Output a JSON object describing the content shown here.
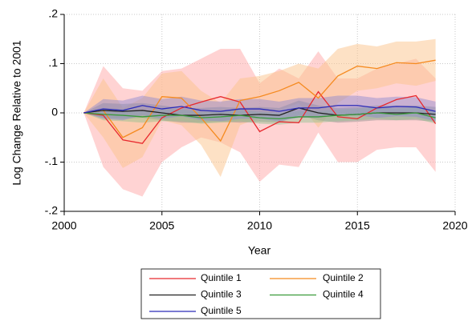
{
  "chart_data": {
    "type": "line",
    "x_label": "Year",
    "y_label": "Log  Change Relative to 2001",
    "x": [
      2001,
      2002,
      2003,
      2004,
      2005,
      2006,
      2007,
      2008,
      2009,
      2010,
      2011,
      2012,
      2013,
      2014,
      2015,
      2016,
      2017,
      2018,
      2019
    ],
    "xlim": [
      2000,
      2020
    ],
    "xticks": [
      2000,
      2005,
      2010,
      2015,
      2020
    ],
    "ylim": [
      -0.2,
      0.2
    ],
    "yticks": [
      {
        "value": -0.2,
        "label": "-.2"
      },
      {
        "value": -0.1,
        "label": "-.1"
      },
      0,
      {
        "value": 0.1,
        "label": ".1"
      },
      {
        "value": 0.2,
        "label": ".2"
      }
    ],
    "grid": true,
    "series": [
      {
        "name": "Quintile 1",
        "color": "#e8292e",
        "band_color": "#ffa8a8",
        "values": [
          0,
          -0.005,
          -0.055,
          -0.062,
          -0.01,
          0.01,
          0.022,
          0.033,
          0.022,
          -0.038,
          -0.018,
          -0.02,
          0.043,
          -0.008,
          -0.012,
          0.01,
          0.027,
          0.035,
          -0.022
        ],
        "upper": [
          0,
          0.095,
          0.05,
          0.045,
          0.085,
          0.09,
          0.11,
          0.13,
          0.13,
          0.06,
          0.09,
          0.07,
          0.125,
          0.07,
          0.07,
          0.09,
          0.1,
          0.11,
          0.07
        ],
        "lower": [
          0,
          -0.11,
          -0.155,
          -0.17,
          -0.1,
          -0.07,
          -0.05,
          -0.06,
          -0.08,
          -0.14,
          -0.105,
          -0.11,
          -0.04,
          -0.1,
          -0.1,
          -0.075,
          -0.07,
          -0.07,
          -0.12
        ]
      },
      {
        "name": "Quintile 2",
        "color": "#f58a1f",
        "band_color": "#fcc48c",
        "values": [
          0,
          0.005,
          -0.05,
          -0.03,
          0.033,
          0.03,
          -0.01,
          -0.057,
          0.025,
          0.033,
          0.045,
          0.062,
          0.03,
          0.075,
          0.095,
          0.09,
          0.102,
          0.1,
          0.107
        ],
        "upper": [
          0,
          0.07,
          0.01,
          0.03,
          0.08,
          0.085,
          0.045,
          0.02,
          0.07,
          0.075,
          0.085,
          0.1,
          0.09,
          0.13,
          0.14,
          0.135,
          0.145,
          0.145,
          0.15
        ],
        "lower": [
          0,
          -0.05,
          -0.112,
          -0.09,
          -0.015,
          -0.025,
          -0.065,
          -0.13,
          -0.025,
          -0.01,
          0.005,
          0.02,
          -0.03,
          0.02,
          0.045,
          0.05,
          0.06,
          0.055,
          0.065
        ]
      },
      {
        "name": "Quintile 3",
        "color": "#222222",
        "band_color": "#8c8c8c",
        "values": [
          0,
          0.005,
          0.003,
          0.005,
          0,
          -0.005,
          -0.005,
          -0.003,
          -0.005,
          -0.003,
          -0.005,
          0.01,
          0,
          -0.005,
          -0.003,
          0,
          0,
          0,
          -0.003
        ],
        "upper": [
          0,
          0.02,
          0.018,
          0.02,
          0.015,
          0.01,
          0.01,
          0.012,
          0.01,
          0.012,
          0.01,
          0.025,
          0.015,
          0.01,
          0.012,
          0.015,
          0.015,
          0.015,
          0.012
        ],
        "lower": [
          0,
          -0.01,
          -0.012,
          -0.01,
          -0.015,
          -0.02,
          -0.02,
          -0.018,
          -0.02,
          -0.018,
          -0.02,
          -0.005,
          -0.015,
          -0.02,
          -0.018,
          -0.015,
          -0.015,
          -0.015,
          -0.018
        ]
      },
      {
        "name": "Quintile 4",
        "color": "#3a9a3a",
        "band_color": "#8fc08f",
        "values": [
          0,
          -0.003,
          -0.005,
          -0.008,
          -0.005,
          -0.005,
          -0.01,
          -0.008,
          -0.005,
          -0.01,
          -0.012,
          -0.008,
          -0.008,
          -0.005,
          -0.003,
          0,
          -0.003,
          0,
          -0.01
        ],
        "upper": [
          0,
          0.009,
          0.007,
          0.004,
          0.007,
          0.007,
          0.002,
          0.004,
          0.007,
          0.002,
          0,
          0.004,
          0.004,
          0.007,
          0.009,
          0.012,
          0.009,
          0.012,
          0.002
        ],
        "lower": [
          0,
          -0.015,
          -0.017,
          -0.02,
          -0.017,
          -0.017,
          -0.022,
          -0.02,
          -0.017,
          -0.022,
          -0.024,
          -0.02,
          -0.02,
          -0.017,
          -0.015,
          -0.012,
          -0.015,
          -0.012,
          -0.022
        ]
      },
      {
        "name": "Quintile 5",
        "color": "#2b2bb8",
        "band_color": "#8884d0",
        "values": [
          0,
          0.008,
          0.005,
          0.015,
          0.008,
          0.013,
          0.005,
          0.003,
          0.008,
          0.008,
          0.003,
          0.01,
          0.01,
          0.015,
          0.015,
          0.01,
          0.013,
          0.012,
          0.003
        ],
        "upper": [
          0,
          0.028,
          0.025,
          0.035,
          0.028,
          0.033,
          0.025,
          0.023,
          0.028,
          0.028,
          0.023,
          0.03,
          0.03,
          0.035,
          0.035,
          0.03,
          0.033,
          0.032,
          0.023
        ],
        "lower": [
          0,
          -0.012,
          -0.015,
          -0.005,
          -0.012,
          -0.007,
          -0.015,
          -0.017,
          -0.012,
          -0.012,
          -0.017,
          -0.01,
          -0.01,
          -0.005,
          -0.005,
          -0.01,
          -0.007,
          -0.008,
          -0.017
        ]
      }
    ]
  }
}
